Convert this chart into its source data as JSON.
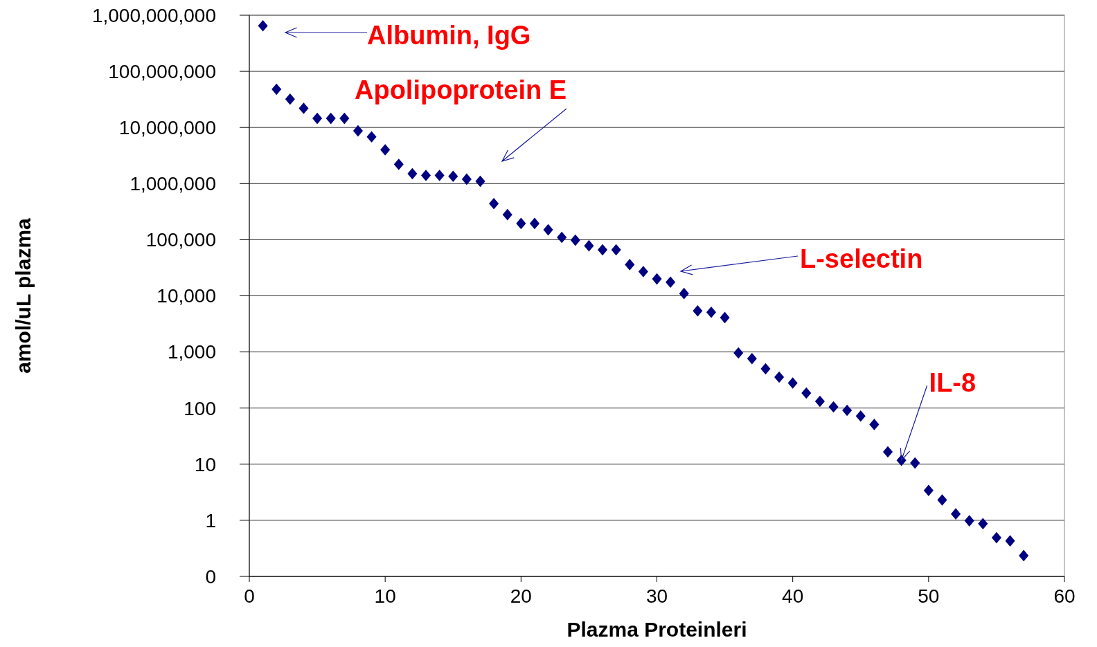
{
  "chart_data": {
    "type": "scatter",
    "xlabel": "Plazma Proteinleri",
    "ylabel": "amol/uL plazma",
    "log": "y",
    "grid": "y",
    "marker": "diamond",
    "xlim": [
      0,
      60
    ],
    "xticks": [
      0,
      10,
      20,
      30,
      40,
      50,
      60
    ],
    "ylim": [
      0.1,
      1000000000
    ],
    "yticks": [
      {
        "value": 0.1,
        "label": "0"
      },
      1,
      10,
      100,
      {
        "value": 1000,
        "label": "1,000"
      },
      {
        "value": 10000,
        "label": "10,000"
      },
      {
        "value": 100000,
        "label": "100,000"
      },
      {
        "value": 1000000,
        "label": "1,000,000"
      },
      {
        "value": 10000000,
        "label": "10,000,000"
      },
      {
        "value": 100000000,
        "label": "100,000,000"
      },
      {
        "value": 1000000000,
        "label": "1,000,000,000"
      }
    ],
    "series": [
      {
        "color": "#000080",
        "x": [
          1,
          2,
          3,
          4,
          5,
          6,
          7,
          8,
          9,
          10,
          11,
          12,
          13,
          14,
          15,
          16,
          17,
          18,
          19,
          20,
          21,
          22,
          23,
          24,
          25,
          26,
          27,
          28,
          29,
          30,
          31,
          32,
          33,
          34,
          35,
          36,
          37,
          38,
          39,
          40,
          41,
          42,
          43,
          44,
          45,
          46,
          47,
          48,
          49,
          50,
          51,
          52,
          53,
          54,
          55,
          56,
          57
        ],
        "values": [
          650000000,
          48000000,
          32000000,
          22000000,
          14500000,
          14500000,
          14500000,
          8700000,
          6800000,
          4000000,
          2200000,
          1500000,
          1400000,
          1400000,
          1350000,
          1200000,
          1100000,
          440000,
          280000,
          195000,
          195000,
          150000,
          110000,
          98000,
          78000,
          66000,
          66000,
          36000,
          27000,
          20000,
          17500,
          11000,
          5400,
          5100,
          4100,
          960,
          760,
          500,
          355,
          280,
          185,
          132,
          105,
          91,
          72,
          51,
          16.6,
          11.7,
          10.5,
          3.4,
          2.3,
          1.3,
          0.98,
          0.87,
          0.49,
          0.43,
          0.235
        ]
      }
    ],
    "annotations": [
      "Albumin, IgG",
      "Apolipoprotein E",
      "L-selectin",
      {
        "text": "IL-8",
        "x": 48,
        "y": 11.7
      }
    ]
  }
}
